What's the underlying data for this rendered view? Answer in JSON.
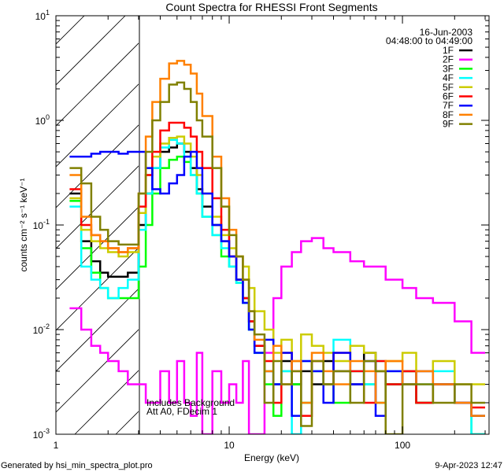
{
  "chart_data": {
    "type": "line",
    "title": "Count Spectra for RHESSI Front Segments",
    "xlabel": "Energy (keV)",
    "ylabel": "counts cm⁻² s⁻¹ keV⁻¹",
    "xscale": "log",
    "yscale": "log",
    "xlim": [
      1,
      316
    ],
    "ylim": [
      0.001,
      10
    ],
    "x_ticks": [
      {
        "value": 1,
        "label": "1"
      },
      {
        "value": 10,
        "label": "10"
      },
      {
        "value": 100,
        "label": "100"
      }
    ],
    "y_ticks": [
      {
        "value": 10,
        "base": "10",
        "exp": "1"
      },
      {
        "value": 1,
        "base": "10",
        "exp": "0"
      },
      {
        "value": 0.1,
        "base": "10",
        "exp": "-1"
      },
      {
        "value": 0.01,
        "base": "10",
        "exp": "-2"
      },
      {
        "value": 0.001,
        "base": "10",
        "exp": "-3"
      }
    ],
    "hatched_region_keV": [
      1,
      3
    ],
    "legend_placement": "top-right",
    "date": "16-Jun-2003",
    "time_range": "04:48:00 to 04:49:00",
    "annotations": [
      "Includes Background",
      "Att A0, FDecim 1"
    ],
    "energy_edges": [
      1.2,
      1.4,
      1.6,
      1.8,
      2.0,
      2.3,
      2.6,
      3.0,
      3.3,
      3.6,
      4.0,
      4.5,
      5.0,
      5.5,
      6.0,
      6.5,
      7.0,
      8,
      9,
      10,
      11,
      12,
      13,
      14,
      16,
      18,
      20,
      23,
      26,
      30,
      35,
      40,
      50,
      60,
      70,
      80,
      100,
      120,
      150,
      200,
      250,
      300
    ],
    "series": [
      {
        "name": "1F",
        "color": "#000000",
        "values": [
          0.2,
          0.07,
          0.045,
          0.035,
          0.032,
          0.032,
          0.035,
          0.1,
          0.2,
          0.35,
          0.5,
          0.55,
          0.6,
          0.5,
          0.35,
          0.22,
          0.15,
          0.1,
          0.07,
          0.05,
          0.03,
          0.02,
          0.012,
          0.007,
          0.004,
          0.003,
          0.005,
          0.003,
          0.004,
          0.003,
          0.005,
          0.004,
          0.003,
          0.006,
          0.004,
          0.003,
          0.004,
          0.002,
          0.003,
          0.002,
          0.0015
        ]
      },
      {
        "name": "2F",
        "color": "#ff00ff",
        "values": [
          0.016,
          0.01,
          0.007,
          0.006,
          0.005,
          0.004,
          0.003,
          0.003,
          0.002,
          0.002,
          0.004,
          0.002,
          0.005,
          0.002,
          0.0015,
          0.006,
          0.001,
          0.004,
          0.002,
          0.003,
          0.002,
          0.005,
          0.001,
          0.001,
          0.006,
          0.02,
          0.04,
          0.055,
          0.07,
          0.075,
          0.06,
          0.055,
          0.045,
          0.04,
          0.04,
          0.03,
          0.025,
          0.02,
          0.018,
          0.012,
          0.006
        ]
      },
      {
        "name": "3F",
        "color": "#00ff00",
        "values": [
          0.17,
          0.06,
          0.035,
          0.025,
          0.02,
          0.02,
          0.02,
          0.04,
          0.1,
          0.2,
          0.35,
          0.42,
          0.45,
          0.4,
          0.3,
          0.2,
          0.12,
          0.08,
          0.05,
          0.04,
          0.028,
          0.018,
          0.01,
          0.006,
          0.003,
          0.0015,
          0.004,
          0.003,
          0.002,
          0.004,
          0.003,
          0.002,
          0.004,
          0.003,
          0.002,
          0.003,
          0.004,
          0.002,
          0.003,
          0.002,
          0.001
        ]
      },
      {
        "name": "4F",
        "color": "#00ffff",
        "values": [
          0.15,
          0.04,
          0.03,
          0.025,
          0.02,
          0.025,
          0.03,
          0.09,
          0.2,
          0.35,
          0.55,
          0.65,
          0.6,
          0.45,
          0.3,
          0.2,
          0.12,
          0.08,
          0.06,
          0.04,
          0.028,
          0.018,
          0.01,
          0.006,
          0.004,
          0.003,
          0.004,
          0.001,
          0.005,
          0.004,
          0.003,
          0.008,
          0.004,
          0.003,
          0.005,
          0.004,
          0.003,
          0.003,
          0.004,
          0.002,
          0.001
        ]
      },
      {
        "name": "5F",
        "color": "#cccc00",
        "values": [
          0.18,
          0.09,
          0.07,
          0.06,
          0.055,
          0.05,
          0.055,
          0.13,
          0.3,
          0.45,
          0.6,
          0.68,
          0.7,
          0.6,
          0.45,
          0.3,
          0.2,
          0.12,
          0.08,
          0.06,
          0.05,
          0.04,
          0.025,
          0.015,
          0.01,
          0.006,
          0.008,
          0.005,
          0.009,
          0.007,
          0.006,
          0.005,
          0.007,
          0.006,
          0.004,
          0.005,
          0.006,
          0.004,
          0.005,
          0.003,
          0.003
        ]
      },
      {
        "name": "6F",
        "color": "#ff0000",
        "values": [
          0.22,
          0.1,
          0.08,
          0.07,
          0.06,
          0.055,
          0.06,
          0.15,
          0.3,
          0.5,
          0.8,
          0.95,
          0.95,
          0.85,
          0.7,
          0.5,
          0.35,
          0.18,
          0.09,
          0.05,
          0.03,
          0.02,
          0.012,
          0.007,
          0.005,
          0.002,
          0.006,
          0.004,
          0.0015,
          0.005,
          0.003,
          0.006,
          0.004,
          0.002,
          0.005,
          0.003,
          0.004,
          0.002,
          0.003,
          0.002,
          0.0018
        ]
      },
      {
        "name": "7F",
        "color": "#0000ff",
        "values": [
          0.45,
          0.45,
          0.48,
          0.5,
          0.5,
          0.48,
          0.5,
          0.5,
          0.35,
          0.22,
          0.2,
          0.25,
          0.3,
          0.45,
          0.5,
          0.35,
          0.2,
          0.1,
          0.07,
          0.05,
          0.03,
          0.018,
          0.01,
          0.006,
          0.008,
          0.003,
          0.006,
          0.0015,
          0.005,
          0.004,
          0.002,
          0.006,
          0.003,
          0.005,
          0.0015,
          0.004,
          0.003,
          0.004,
          0.003,
          0.002,
          0.0015
        ]
      },
      {
        "name": "8F",
        "color": "#ff8000",
        "values": [
          0.3,
          0.12,
          0.08,
          0.07,
          0.06,
          0.055,
          0.06,
          0.2,
          0.7,
          1.5,
          2.5,
          3.5,
          3.7,
          3.4,
          2.8,
          1.8,
          1.1,
          0.45,
          0.18,
          0.09,
          0.05,
          0.03,
          0.015,
          0.008,
          0.004,
          0.007,
          0.003,
          0.005,
          0.002,
          0.006,
          0.004,
          0.003,
          0.005,
          0.004,
          0.002,
          0.005,
          0.003,
          0.004,
          0.003,
          0.002,
          0.0015
        ]
      },
      {
        "name": "9F",
        "color": "#808000",
        "values": [
          0.35,
          0.25,
          0.12,
          0.09,
          0.07,
          0.065,
          0.065,
          0.2,
          0.5,
          1.0,
          1.5,
          2.2,
          2.3,
          2.0,
          1.5,
          1.0,
          0.7,
          0.35,
          0.15,
          0.08,
          0.05,
          0.03,
          0.015,
          0.009,
          0.002,
          0.005,
          0.003,
          0.004,
          0.0012,
          0.005,
          0.003,
          0.004,
          0.002,
          0.005,
          0.004,
          0.001,
          0.003,
          0.003,
          0.002,
          0.003,
          0.002
        ]
      }
    ]
  },
  "footer": {
    "generated_by": "Generated by hsi_min_spectra_plot.pro",
    "timestamp": "9-Apr-2023 12:47"
  }
}
